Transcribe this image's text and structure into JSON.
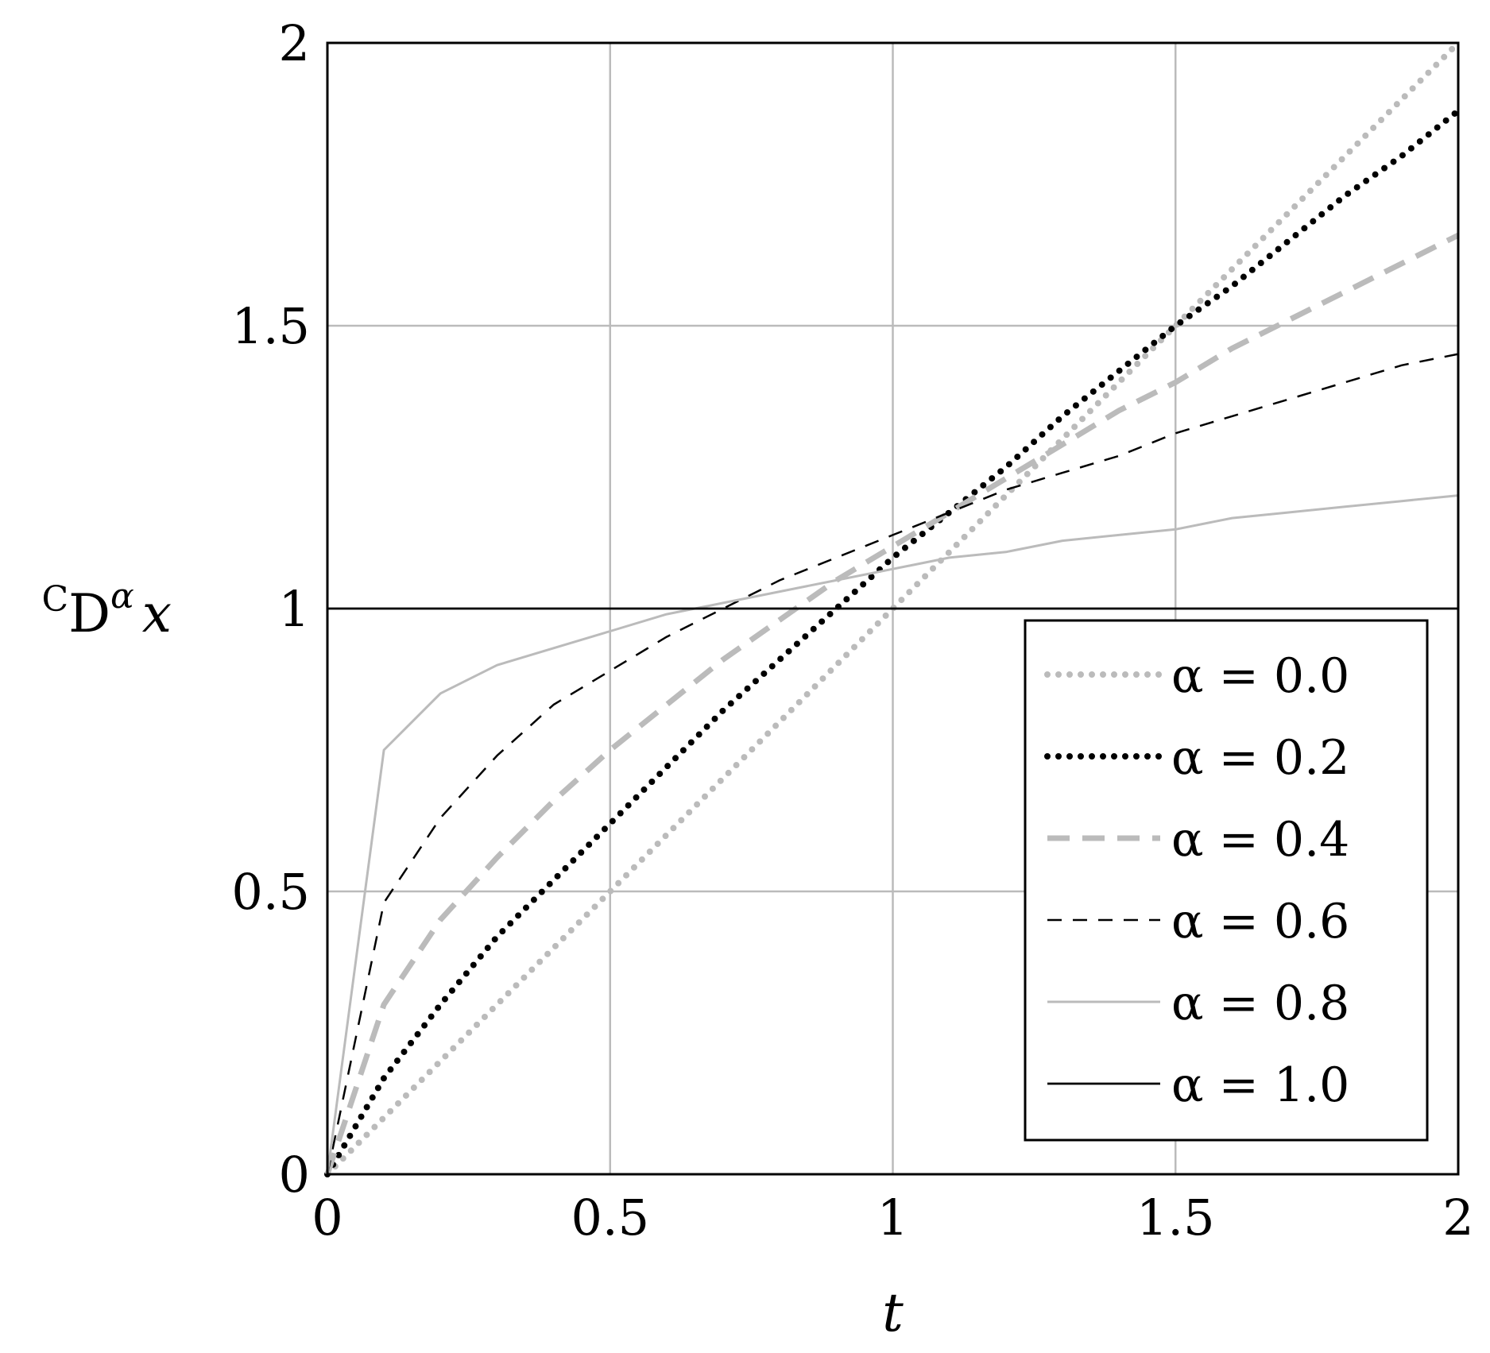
{
  "chart_data": {
    "type": "line",
    "xlabel": "t",
    "ylabel": {
      "pre": "C",
      "main": "D",
      "sup": "α",
      "post": "x"
    },
    "xlim": [
      0,
      2
    ],
    "ylim": [
      0,
      2
    ],
    "xticks": [
      0,
      0.5,
      1,
      1.5,
      2
    ],
    "yticks": [
      0,
      0.5,
      1,
      1.5,
      2
    ],
    "xtick_labels": [
      "0",
      "0.5",
      "1",
      "1.5",
      "2"
    ],
    "ytick_labels": [
      "0",
      "0.5",
      "1",
      "1.5",
      "2"
    ],
    "grid": true,
    "legend_position": "lower-right",
    "x": [
      0,
      0.1,
      0.2,
      0.3,
      0.4,
      0.5,
      0.6,
      0.7,
      0.8,
      0.9,
      1.0,
      1.1,
      1.2,
      1.3,
      1.4,
      1.5,
      1.6,
      1.7,
      1.8,
      1.9,
      2.0
    ],
    "series": [
      {
        "name": "α = 0.0",
        "alpha": 0.0,
        "color": "#bbbbbb",
        "style": "dotted-thick",
        "values": [
          0,
          0.1,
          0.2,
          0.3,
          0.4,
          0.5,
          0.6,
          0.7,
          0.8,
          0.9,
          1.0,
          1.1,
          1.2,
          1.3,
          1.4,
          1.5,
          1.6,
          1.7,
          1.8,
          1.9,
          2.0
        ]
      },
      {
        "name": "α = 0.2",
        "alpha": 0.2,
        "color": "#000000",
        "style": "dotted-thick",
        "values": [
          0,
          0.17,
          0.3,
          0.42,
          0.52,
          0.62,
          0.72,
          0.82,
          0.91,
          1.0,
          1.09,
          1.17,
          1.25,
          1.34,
          1.42,
          1.5,
          1.57,
          1.65,
          1.73,
          1.8,
          1.88
        ]
      },
      {
        "name": "α = 0.4",
        "alpha": 0.4,
        "color": "#bbbbbb",
        "style": "dashed-thick",
        "values": [
          0,
          0.3,
          0.45,
          0.56,
          0.66,
          0.75,
          0.83,
          0.91,
          0.98,
          1.05,
          1.11,
          1.17,
          1.23,
          1.29,
          1.35,
          1.4,
          1.46,
          1.51,
          1.56,
          1.61,
          1.66
        ]
      },
      {
        "name": "α = 0.6",
        "alpha": 0.6,
        "color": "#000000",
        "style": "dashed-thin",
        "values": [
          0,
          0.48,
          0.63,
          0.74,
          0.83,
          0.89,
          0.95,
          1.0,
          1.05,
          1.09,
          1.13,
          1.17,
          1.21,
          1.24,
          1.27,
          1.31,
          1.34,
          1.37,
          1.4,
          1.43,
          1.45
        ]
      },
      {
        "name": "α = 0.8",
        "alpha": 0.8,
        "color": "#bbbbbb",
        "style": "solid",
        "values": [
          0,
          0.75,
          0.85,
          0.9,
          0.93,
          0.96,
          0.99,
          1.01,
          1.03,
          1.05,
          1.07,
          1.09,
          1.1,
          1.12,
          1.13,
          1.14,
          1.16,
          1.17,
          1.18,
          1.19,
          1.2
        ]
      },
      {
        "name": "α = 1.0",
        "alpha": 1.0,
        "color": "#000000",
        "style": "solid",
        "values": [
          1,
          1,
          1,
          1,
          1,
          1,
          1,
          1,
          1,
          1,
          1,
          1,
          1,
          1,
          1,
          1,
          1,
          1,
          1,
          1,
          1
        ]
      }
    ]
  }
}
